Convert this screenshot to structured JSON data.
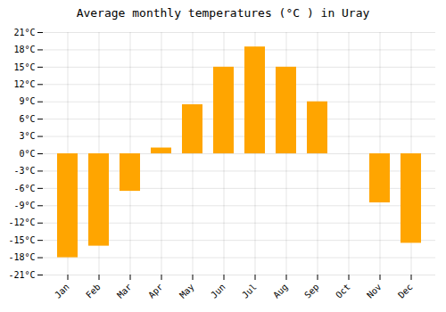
{
  "chart_data": {
    "type": "bar",
    "title": "Average monthly temperatures (°C ) in Uray",
    "categories": [
      "Jan",
      "Feb",
      "Mar",
      "Apr",
      "May",
      "Jun",
      "Jul",
      "Aug",
      "Sep",
      "Oct",
      "Nov",
      "Dec"
    ],
    "values": [
      -18,
      -16,
      -6.5,
      1,
      8.5,
      15,
      18.5,
      15,
      9,
      0,
      -8.5,
      -15.5
    ],
    "color": "#FFA500",
    "ylim": [
      -21,
      21
    ],
    "yticks": [
      {
        "value": -21,
        "label": "-21°C"
      },
      {
        "value": -18,
        "label": "-18°C"
      },
      {
        "value": -15,
        "label": "-15°C"
      },
      {
        "value": -12,
        "label": "-12°C"
      },
      {
        "value": -9,
        "label": "-9°C"
      },
      {
        "value": -6,
        "label": "-6°C"
      },
      {
        "value": -3,
        "label": "-3°C"
      },
      {
        "value": 0,
        "label": "0°C"
      },
      {
        "value": 3,
        "label": "3°C"
      },
      {
        "value": 6,
        "label": "6°C"
      },
      {
        "value": 9,
        "label": "9°C"
      },
      {
        "value": 12,
        "label": "12°C"
      },
      {
        "value": 15,
        "label": "15°C"
      },
      {
        "value": 18,
        "label": "18°C"
      },
      {
        "value": 21,
        "label": "21°C"
      }
    ],
    "grid": true
  }
}
